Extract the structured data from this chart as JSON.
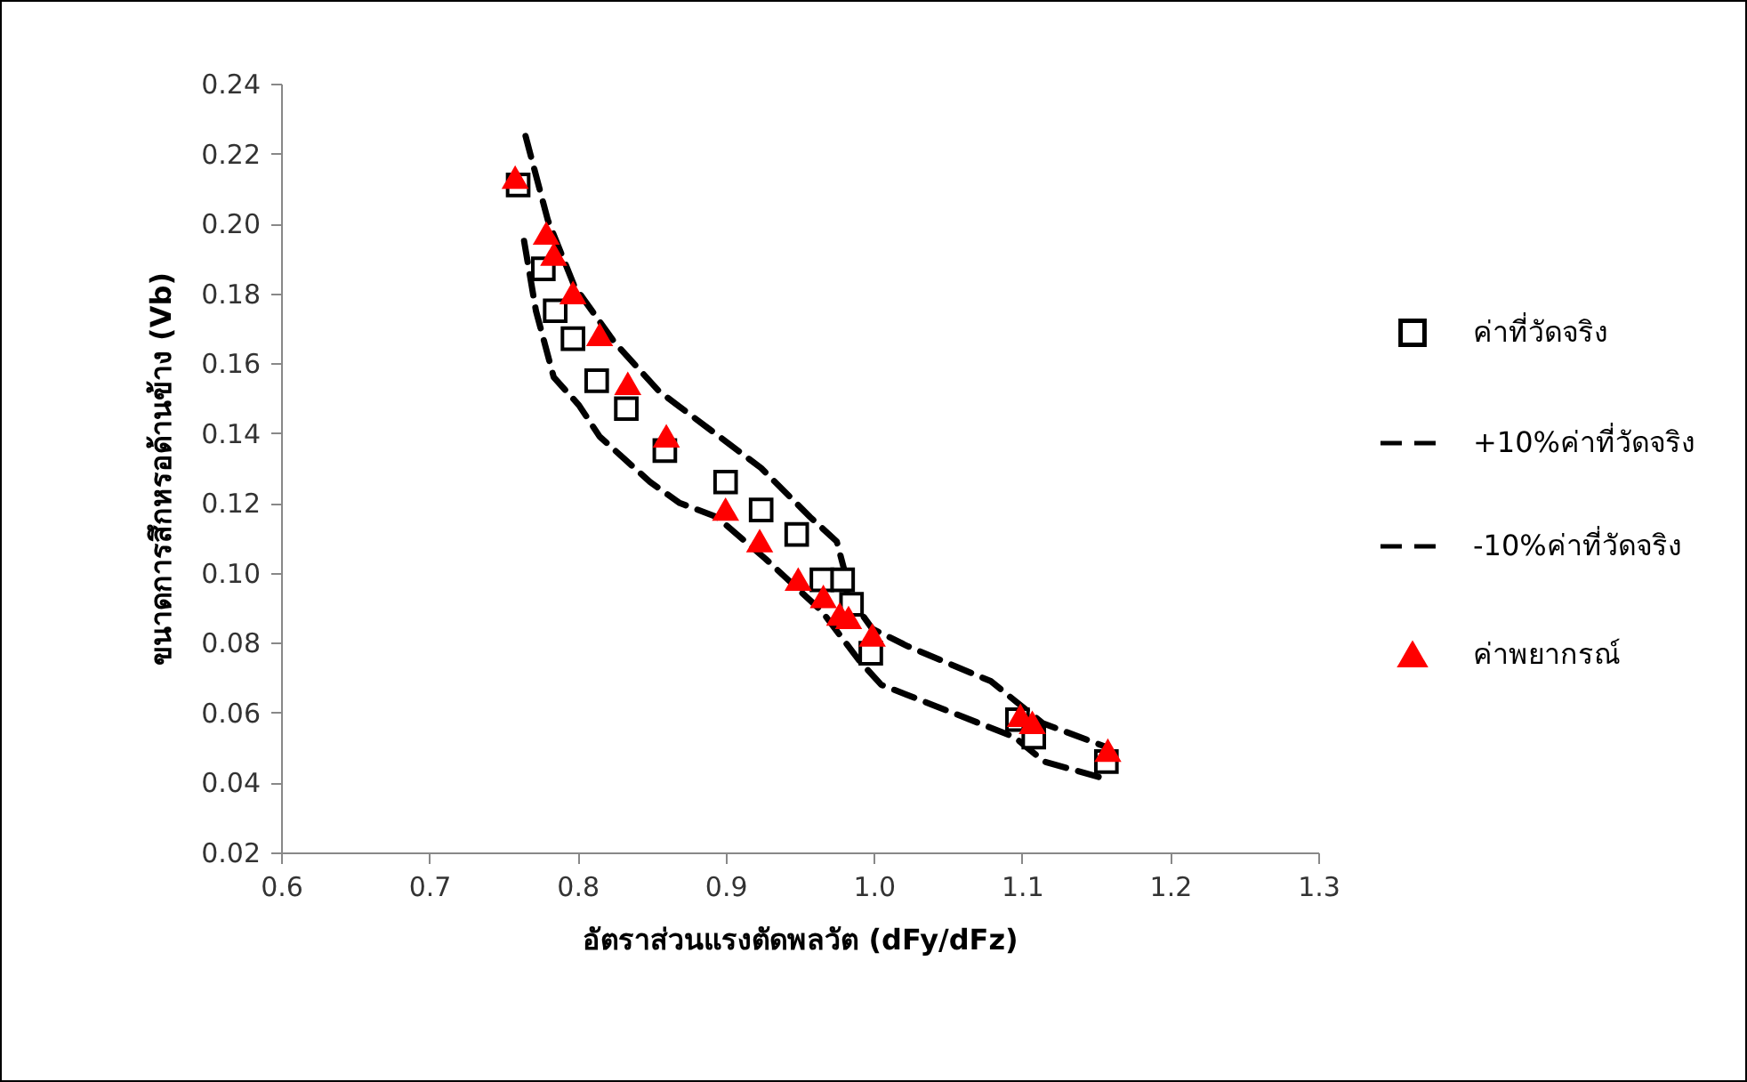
{
  "chart_data": {
    "type": "scatter",
    "xlabel": "อัตราส่วนแรงตัดพลวัต (dFy/dFz)",
    "ylabel": "ขนาดการสึกหรอด้านข้าง  (Vb)",
    "xlim": [
      0.6,
      1.3
    ],
    "xticks": [
      0.6,
      0.7,
      0.8,
      0.9,
      {
        "value": 1,
        "label": "1.0"
      },
      1.1,
      1.2,
      1.3
    ],
    "ylim": [
      0.02,
      0.24
    ],
    "yticks": [
      0.02,
      0.04,
      0.06,
      0.08,
      {
        "value": 0.1,
        "label": "0.10"
      },
      0.12,
      0.14,
      0.16,
      0.18,
      {
        "value": 0.2,
        "label": "0.20"
      },
      0.22,
      0.24
    ],
    "grid": false,
    "legend": "right",
    "series": [
      {
        "name": "ค่าที่วัดจริง",
        "type": "scatter",
        "marker": "square",
        "color": "#000000",
        "x": [
          0.76,
          0.777,
          0.785,
          0.797,
          0.813,
          0.833,
          0.859,
          0.9,
          0.924,
          0.948,
          0.965,
          0.979,
          0.985,
          0.998,
          1.097,
          1.108,
          1.157
        ],
        "values": [
          0.211,
          0.187,
          0.175,
          0.167,
          0.155,
          0.147,
          0.135,
          0.126,
          0.118,
          0.111,
          0.098,
          0.098,
          0.091,
          0.077,
          0.058,
          0.053,
          0.046
        ]
      },
      {
        "name": "+10%ค่าที่วัดจริง",
        "type": "line",
        "line_style": "dashed",
        "marker": "none",
        "color": "#000000",
        "x": [
          0.765,
          0.78,
          0.798,
          0.825,
          0.855,
          0.924,
          0.957,
          0.975,
          0.98,
          0.982,
          0.999,
          1.023,
          1.079,
          1.114,
          1.158
        ],
        "values": [
          0.225,
          0.201,
          0.182,
          0.166,
          0.152,
          0.13,
          0.116,
          0.109,
          0.101,
          0.094,
          0.084,
          0.079,
          0.069,
          0.057,
          0.05
        ]
      },
      {
        "name": "-10%ค่าที่วัดจริง",
        "type": "line",
        "line_style": "dashed",
        "marker": "none",
        "color": "#000000",
        "x": [
          0.764,
          0.772,
          0.784,
          0.801,
          0.815,
          0.849,
          0.869,
          0.894,
          0.927,
          0.965,
          0.99,
          1.005,
          1.029,
          1.071,
          1.095,
          1.115,
          1.157
        ],
        "values": [
          0.195,
          0.175,
          0.156,
          0.148,
          0.139,
          0.126,
          0.12,
          0.116,
          0.104,
          0.089,
          0.075,
          0.068,
          0.064,
          0.057,
          0.053,
          0.046,
          0.041
        ]
      },
      {
        "name": "ค่าพยากรณ์",
        "type": "scatter",
        "marker": "triangle",
        "color": "#ff0000",
        "x": [
          0.758,
          0.779,
          0.784,
          0.797,
          0.815,
          0.834,
          0.86,
          0.9,
          0.923,
          0.949,
          0.966,
          0.977,
          0.983,
          0.999,
          1.099,
          1.107,
          1.158
        ],
        "values": [
          0.213,
          0.197,
          0.191,
          0.18,
          0.168,
          0.154,
          0.139,
          0.118,
          0.109,
          0.098,
          0.093,
          0.088,
          0.087,
          0.082,
          0.059,
          0.057,
          0.049
        ]
      }
    ]
  }
}
